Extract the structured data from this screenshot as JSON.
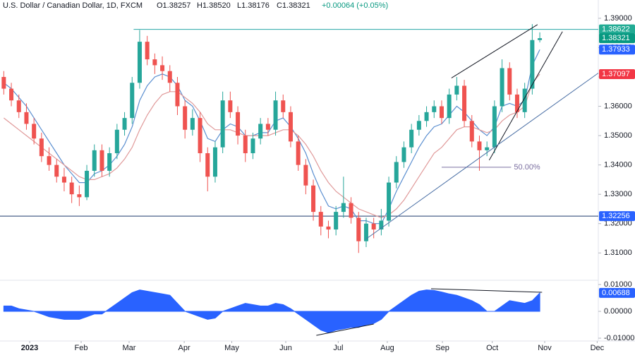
{
  "chart_data": {
    "type": "candlestick",
    "title": "U.S. Dollar / Canadian Dollar, 1D, FXCM",
    "ohlc_labels": [
      "O1.38257",
      "H1.38520",
      "L1.38176",
      "C1.38321"
    ],
    "change": "+0.00064 (+0.05%)",
    "up_color": "#26a69a",
    "down_color": "#ef5350",
    "candles": [
      [
        1.37,
        1.372,
        1.364,
        1.366
      ],
      [
        1.366,
        1.368,
        1.36,
        1.362
      ],
      [
        1.362,
        1.364,
        1.356,
        1.358
      ],
      [
        1.358,
        1.361,
        1.352,
        1.354
      ],
      [
        1.354,
        1.356,
        1.347,
        1.349
      ],
      [
        1.349,
        1.351,
        1.341,
        1.343
      ],
      [
        1.343,
        1.346,
        1.338,
        1.34
      ],
      [
        1.34,
        1.342,
        1.334,
        1.336
      ],
      [
        1.336,
        1.339,
        1.331,
        1.334
      ],
      [
        1.334,
        1.336,
        1.327,
        1.33
      ],
      [
        1.33,
        1.333,
        1.326,
        1.329
      ],
      [
        1.329,
        1.34,
        1.328,
        1.338
      ],
      [
        1.338,
        1.347,
        1.336,
        1.345
      ],
      [
        1.345,
        1.347,
        1.336,
        1.338
      ],
      [
        1.338,
        1.346,
        1.336,
        1.344
      ],
      [
        1.344,
        1.354,
        1.342,
        1.352
      ],
      [
        1.352,
        1.358,
        1.35,
        1.356
      ],
      [
        1.356,
        1.37,
        1.354,
        1.368
      ],
      [
        1.368,
        1.386,
        1.366,
        1.382
      ],
      [
        1.382,
        1.384,
        1.374,
        1.376
      ],
      [
        1.376,
        1.378,
        1.371,
        1.374
      ],
      [
        1.374,
        1.377,
        1.369,
        1.372
      ],
      [
        1.372,
        1.374,
        1.365,
        1.368
      ],
      [
        1.368,
        1.37,
        1.357,
        1.36
      ],
      [
        1.36,
        1.362,
        1.349,
        1.352
      ],
      [
        1.352,
        1.359,
        1.35,
        1.356
      ],
      [
        1.356,
        1.358,
        1.341,
        1.344
      ],
      [
        1.344,
        1.346,
        1.331,
        1.336
      ],
      [
        1.336,
        1.348,
        1.334,
        1.346
      ],
      [
        1.346,
        1.365,
        1.344,
        1.362
      ],
      [
        1.362,
        1.365,
        1.356,
        1.358
      ],
      [
        1.358,
        1.36,
        1.347,
        1.35
      ],
      [
        1.35,
        1.352,
        1.341,
        1.344
      ],
      [
        1.344,
        1.351,
        1.342,
        1.349
      ],
      [
        1.349,
        1.356,
        1.347,
        1.354
      ],
      [
        1.354,
        1.356,
        1.35,
        1.352
      ],
      [
        1.352,
        1.365,
        1.35,
        1.362
      ],
      [
        1.362,
        1.364,
        1.356,
        1.358
      ],
      [
        1.358,
        1.36,
        1.346,
        1.348
      ],
      [
        1.348,
        1.35,
        1.338,
        1.34
      ],
      [
        1.34,
        1.342,
        1.33,
        1.333
      ],
      [
        1.333,
        1.335,
        1.321,
        1.324
      ],
      [
        1.324,
        1.326,
        1.316,
        1.319
      ],
      [
        1.319,
        1.321,
        1.315,
        1.318
      ],
      [
        1.318,
        1.326,
        1.316,
        1.324
      ],
      [
        1.324,
        1.336,
        1.322,
        1.327
      ],
      [
        1.327,
        1.329,
        1.32,
        1.322
      ],
      [
        1.322,
        1.324,
        1.31,
        1.314
      ],
      [
        1.314,
        1.322,
        1.312,
        1.32
      ],
      [
        1.32,
        1.322,
        1.315,
        1.318
      ],
      [
        1.318,
        1.325,
        1.316,
        1.321
      ],
      [
        1.321,
        1.336,
        1.319,
        1.334
      ],
      [
        1.334,
        1.343,
        1.332,
        1.341
      ],
      [
        1.341,
        1.348,
        1.339,
        1.346
      ],
      [
        1.346,
        1.354,
        1.344,
        1.352
      ],
      [
        1.352,
        1.357,
        1.35,
        1.355
      ],
      [
        1.355,
        1.36,
        1.353,
        1.358
      ],
      [
        1.358,
        1.362,
        1.356,
        1.36
      ],
      [
        1.36,
        1.362,
        1.354,
        1.356
      ],
      [
        1.356,
        1.366,
        1.354,
        1.364
      ],
      [
        1.364,
        1.37,
        1.362,
        1.367
      ],
      [
        1.367,
        1.369,
        1.353,
        1.355
      ],
      [
        1.355,
        1.357,
        1.346,
        1.348
      ],
      [
        1.348,
        1.35,
        1.338,
        1.345
      ],
      [
        1.345,
        1.348,
        1.343,
        1.346
      ],
      [
        1.346,
        1.362,
        1.344,
        1.36
      ],
      [
        1.36,
        1.376,
        1.358,
        1.373
      ],
      [
        1.373,
        1.375,
        1.362,
        1.364
      ],
      [
        1.364,
        1.366,
        1.356,
        1.358
      ],
      [
        1.358,
        1.368,
        1.356,
        1.366
      ],
      [
        1.366,
        1.388,
        1.364,
        1.38257
      ],
      [
        1.38257,
        1.3852,
        1.38176,
        1.38321
      ]
    ],
    "series": [
      {
        "color": "#5b8fd0",
        "values": [
          1.368,
          1.366,
          1.363,
          1.36,
          1.356,
          1.352,
          1.348,
          1.344,
          1.34,
          1.337,
          1.334,
          1.334,
          1.337,
          1.338,
          1.34,
          1.343,
          1.347,
          1.353,
          1.362,
          1.367,
          1.37,
          1.371,
          1.37,
          1.367,
          1.362,
          1.36,
          1.355,
          1.349,
          1.348,
          1.352,
          1.354,
          1.353,
          1.35,
          1.35,
          1.351,
          1.351,
          1.355,
          1.356,
          1.353,
          1.349,
          1.344,
          1.337,
          1.331,
          1.326,
          1.325,
          1.326,
          1.325,
          1.321,
          1.321,
          1.32,
          1.32,
          1.325,
          1.331,
          1.336,
          1.341,
          1.346,
          1.35,
          1.353,
          1.354,
          1.357,
          1.36,
          1.358,
          1.355,
          1.352,
          1.35,
          1.353,
          1.36,
          1.361,
          1.36,
          1.362,
          1.374,
          1.37933
        ]
      },
      {
        "color": "#e09a9a",
        "values": [
          1.356,
          1.354,
          1.352,
          1.35,
          1.348,
          1.346,
          1.344,
          1.342,
          1.34,
          1.338,
          1.336,
          1.335,
          1.335,
          1.336,
          1.337,
          1.339,
          1.342,
          1.346,
          1.352,
          1.357,
          1.361,
          1.364,
          1.365,
          1.365,
          1.363,
          1.361,
          1.358,
          1.354,
          1.352,
          1.352,
          1.352,
          1.351,
          1.35,
          1.35,
          1.35,
          1.35,
          1.351,
          1.352,
          1.352,
          1.35,
          1.347,
          1.343,
          1.338,
          1.334,
          1.331,
          1.329,
          1.327,
          1.325,
          1.324,
          1.323,
          1.322,
          1.323,
          1.325,
          1.328,
          1.332,
          1.336,
          1.34,
          1.344,
          1.346,
          1.349,
          1.352,
          1.353,
          1.353,
          1.352,
          1.351,
          1.352,
          1.355,
          1.357,
          1.358,
          1.36,
          1.368,
          1.37097
        ]
      }
    ],
    "xlim": [
      -0.5,
      78.75
    ],
    "xticks": [
      {
        "value": 3.43,
        "label": "2023"
      },
      {
        "value": 10.25,
        "label": "Feb"
      },
      {
        "value": 16.6,
        "label": "Mar"
      },
      {
        "value": 23.9,
        "label": "Apr"
      },
      {
        "value": 30.2,
        "label": "May"
      },
      {
        "value": 37.35,
        "label": "Jun"
      },
      {
        "value": 44.3,
        "label": "Jul"
      },
      {
        "value": 50.8,
        "label": "Aug"
      },
      {
        "value": 58.1,
        "label": "Sep"
      },
      {
        "value": 64.7,
        "label": "Oct"
      },
      {
        "value": 71.65,
        "label": "Nov"
      },
      {
        "value": 78.6,
        "label": "Dec"
      }
    ],
    "ylim": [
      1.30116,
      1.39623
    ],
    "yticks": [
      {
        "value": 1.31,
        "label": "1.31000"
      },
      {
        "value": 1.32,
        "label": "1.32000"
      },
      {
        "value": 1.33,
        "label": "1.33000"
      },
      {
        "value": 1.34,
        "label": "1.34000"
      },
      {
        "value": 1.35,
        "label": "1.35000"
      },
      {
        "value": 1.36,
        "label": "1.36000"
      },
      {
        "value": 1.37,
        "label": "1.37000"
      },
      {
        "value": 1.38,
        "label": "1.38000"
      },
      {
        "value": 1.39,
        "label": "1.39000"
      }
    ],
    "hlines": [
      {
        "value": 1.38622,
        "from": 17.2,
        "color": "#26a6a6"
      },
      {
        "value": 1.32256,
        "from": -0.5,
        "color": "#1e3a6e"
      }
    ],
    "price_labels": [
      {
        "value": 1.38622,
        "label": "1.38622",
        "color": "#22ab94"
      },
      {
        "value": 1.38321,
        "label": "1.38321",
        "color": "#089981"
      },
      {
        "value": 1.37933,
        "label": "1.37933",
        "color": "#2962ff"
      },
      {
        "value": 1.37097,
        "label": "1.37097",
        "color": "#f23645"
      },
      {
        "value": 1.32256,
        "label": "1.32256",
        "color": "#2962ff"
      }
    ],
    "trendlines": [
      {
        "color": "#131722",
        "points": [
          [
            59.3,
            1.36964
          ],
          [
            70.7,
            1.38784
          ]
        ]
      },
      {
        "color": "#131722",
        "points": [
          [
            64.3,
            1.34162
          ],
          [
            74.0,
            1.38545
          ]
        ]
      },
      {
        "color": "#4a6fa5",
        "points": [
          [
            48.0,
            1.31479
          ],
          [
            78.75,
            1.37132
          ]
        ]
      }
    ],
    "fib": {
      "value": 1.33922,
      "from": 58.0,
      "to": 67.2,
      "label": "50.00%",
      "color": "#7b6fa0"
    },
    "oscillator": {
      "color": "#2962ff",
      "values": [
        0.002,
        0.002,
        0.001,
        0.0005,
        0,
        -0.001,
        -0.002,
        -0.0025,
        -0.003,
        -0.003,
        -0.003,
        -0.002,
        -0.001,
        -0.001,
        0.001,
        0.003,
        0.005,
        0.007,
        0.008,
        0.0075,
        0.007,
        0.0065,
        0.006,
        0.003,
        0,
        -0.001,
        -0.002,
        -0.003,
        -0.0025,
        0,
        0.001,
        0.002,
        0.003,
        0.0025,
        0.002,
        0.002,
        0.003,
        0.0025,
        0.001,
        -0.001,
        -0.003,
        -0.005,
        -0.007,
        -0.008,
        -0.007,
        -0.0065,
        -0.006,
        -0.006,
        -0.005,
        -0.0045,
        -0.003,
        0,
        0.002,
        0.004,
        0.006,
        0.0075,
        0.008,
        0.0078,
        0.0072,
        0.0065,
        0.006,
        0.005,
        0.004,
        0.0025,
        0,
        0,
        0.002,
        0.004,
        0.0035,
        0.003,
        0.004,
        0.00688
      ],
      "ylim": [
        -0.01105,
        0.01158
      ],
      "yticks": [
        {
          "value": 0.01,
          "label": "0.01000"
        },
        {
          "value": 0,
          "label": "0.00000"
        },
        {
          "value": -0.01,
          "label": "-0.01000"
        }
      ],
      "last_label": {
        "value": 0.00688,
        "label": "0.00688"
      },
      "trendlines": [
        {
          "color": "#131722",
          "points": [
            [
              41.4,
              -0.00895
            ],
            [
              49.0,
              -0.00474
            ]
          ]
        },
        {
          "color": "#131722",
          "points": [
            [
              56.6,
              0.00842
            ],
            [
              71.3,
              0.00711
            ]
          ]
        }
      ]
    }
  }
}
